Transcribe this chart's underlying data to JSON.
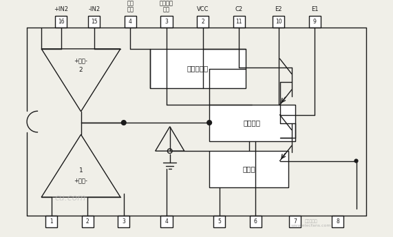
{
  "bg_color": "#f0efe8",
  "chip_color": "#ffffff",
  "line_color": "#1a1a1a",
  "top_labels": [
    "+IN2",
    "-IN2",
    "基准\n输出",
    "输出方式\n控制",
    "VCC",
    "C2",
    "E2",
    "E1"
  ],
  "top_pins": [
    "16",
    "15",
    "4",
    "3",
    "2",
    "11",
    "10",
    "9"
  ],
  "bottom_pins": [
    "1",
    "2",
    "3",
    "4",
    "5",
    "6",
    "7",
    "8"
  ],
  "box_label1": "基准稳压器",
  "box_label2": "控制电路",
  "box_label3": "振荡器",
  "amp1_label": "+误放-",
  "amp2_label": "+误放-",
  "amp1_num": "2",
  "amp2_num": "1",
  "watermark1": "cu.com",
  "watermark2": "电子发烧友\nwww.elecfans.com"
}
